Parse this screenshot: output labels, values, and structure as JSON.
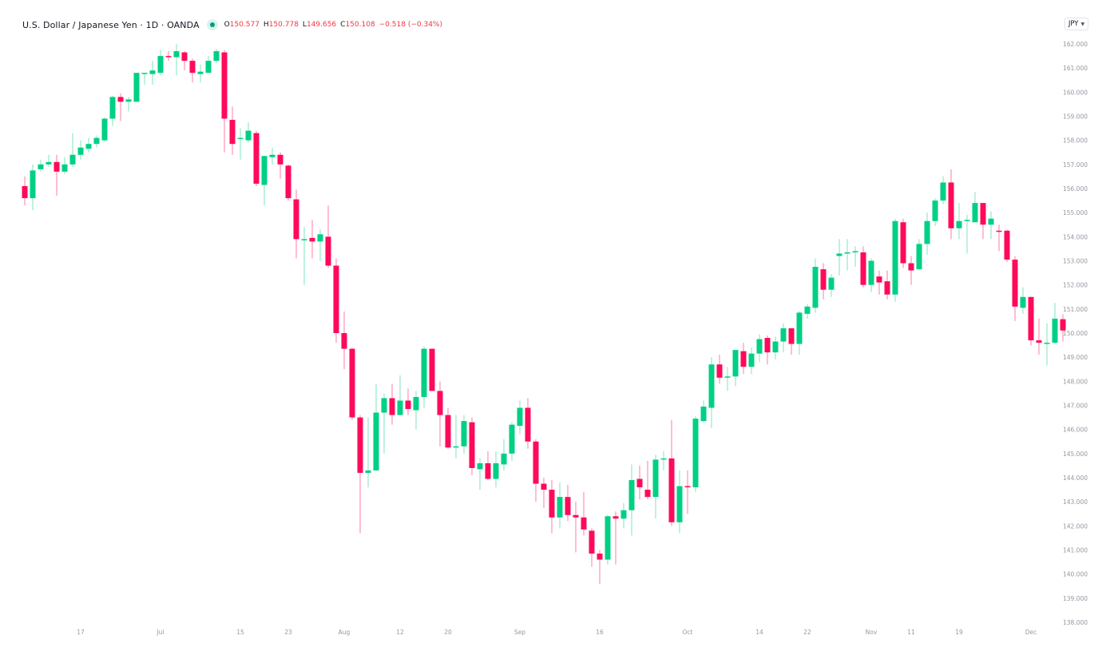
{
  "header": {
    "title": "U.S. Dollar / Japanese Yen · 1D · OANDA",
    "status_color": "#089981",
    "ohlc": {
      "open_label": "O",
      "open": "150.577",
      "high_label": "H",
      "high": "150.778",
      "low_label": "L",
      "low": "149.656",
      "close_label": "C",
      "close": "150.108",
      "change": "−0.518 (−0.34%)"
    }
  },
  "currency_selector": {
    "value": "JPY",
    "icon": "chevron-down-icon"
  },
  "colors": {
    "up": "#00d084",
    "down": "#ff0a5a",
    "up_wick": "#7fe4be",
    "down_wick": "#ff7ea6",
    "axis_text": "#9598a1"
  },
  "chart_data": {
    "type": "candlestick",
    "title": "U.S. Dollar / Japanese Yen · 1D · OANDA",
    "xlabel": "",
    "ylabel": "",
    "ylim": [
      138,
      162
    ],
    "grid": false,
    "y_ticks": [
      "162.000",
      "161.000",
      "160.000",
      "159.000",
      "158.000",
      "157.000",
      "156.000",
      "155.000",
      "154.000",
      "153.000",
      "152.000",
      "151.000",
      "150.000",
      "149.000",
      "148.000",
      "147.000",
      "146.000",
      "145.000",
      "144.000",
      "143.000",
      "142.000",
      "141.000",
      "140.000",
      "139.000",
      "138.000"
    ],
    "x_ticks": [
      {
        "label": "17",
        "index": 7
      },
      {
        "label": "Jul",
        "index": 17
      },
      {
        "label": "15",
        "index": 27
      },
      {
        "label": "23",
        "index": 33
      },
      {
        "label": "Aug",
        "index": 40
      },
      {
        "label": "12",
        "index": 47
      },
      {
        "label": "20",
        "index": 53
      },
      {
        "label": "Sep",
        "index": 62
      },
      {
        "label": "16",
        "index": 72
      },
      {
        "label": "Oct",
        "index": 83
      },
      {
        "label": "14",
        "index": 92
      },
      {
        "label": "22",
        "index": 98
      },
      {
        "label": "Nov",
        "index": 106
      },
      {
        "label": "11",
        "index": 111
      },
      {
        "label": "19",
        "index": 117
      },
      {
        "label": "Dec",
        "index": 126
      }
    ],
    "series": [
      {
        "name": "USDJPY",
        "fields": [
          "open",
          "high",
          "low",
          "close"
        ],
        "values": [
          [
            156.1,
            156.5,
            155.3,
            155.6
          ],
          [
            155.6,
            157.0,
            155.1,
            156.75
          ],
          [
            156.8,
            157.2,
            156.7,
            157.0
          ],
          [
            157.0,
            157.4,
            156.9,
            157.1
          ],
          [
            157.1,
            157.4,
            155.7,
            156.7
          ],
          [
            156.7,
            157.3,
            156.6,
            157.0
          ],
          [
            157.0,
            158.3,
            156.9,
            157.4
          ],
          [
            157.4,
            158.0,
            157.2,
            157.7
          ],
          [
            157.65,
            158.1,
            157.5,
            157.85
          ],
          [
            157.85,
            158.2,
            157.7,
            158.1
          ],
          [
            158.0,
            158.95,
            157.95,
            158.9
          ],
          [
            158.9,
            159.85,
            158.6,
            159.8
          ],
          [
            159.8,
            159.95,
            158.8,
            159.6
          ],
          [
            159.6,
            159.8,
            159.2,
            159.7
          ],
          [
            159.6,
            160.8,
            159.6,
            160.8
          ],
          [
            160.75,
            160.8,
            160.3,
            160.8
          ],
          [
            160.75,
            161.3,
            160.3,
            160.9
          ],
          [
            160.8,
            161.75,
            160.7,
            161.5
          ],
          [
            161.5,
            161.7,
            161.3,
            161.45
          ],
          [
            161.45,
            162.0,
            160.7,
            161.7
          ],
          [
            161.65,
            161.7,
            160.9,
            161.3
          ],
          [
            161.3,
            161.4,
            160.4,
            160.8
          ],
          [
            160.75,
            161.15,
            160.4,
            160.85
          ],
          [
            160.8,
            161.5,
            160.8,
            161.3
          ],
          [
            161.3,
            161.8,
            161.2,
            161.7
          ],
          [
            161.65,
            161.75,
            157.5,
            158.9
          ],
          [
            158.85,
            159.4,
            157.4,
            157.85
          ],
          [
            158.1,
            158.5,
            157.2,
            158.1
          ],
          [
            158.0,
            158.75,
            157.9,
            158.4
          ],
          [
            158.3,
            158.4,
            156.1,
            156.2
          ],
          [
            156.15,
            157.35,
            155.3,
            157.35
          ],
          [
            157.3,
            157.7,
            157.0,
            157.4
          ],
          [
            157.4,
            157.5,
            156.4,
            157.0
          ],
          [
            156.95,
            157.0,
            155.5,
            155.6
          ],
          [
            155.55,
            155.95,
            153.1,
            153.9
          ],
          [
            153.9,
            154.4,
            152.0,
            153.9
          ],
          [
            153.95,
            154.7,
            153.1,
            153.8
          ],
          [
            153.8,
            154.3,
            153.0,
            154.1
          ],
          [
            154.0,
            155.3,
            152.7,
            152.8
          ],
          [
            152.8,
            153.1,
            149.6,
            150.0
          ],
          [
            150.0,
            150.9,
            148.5,
            149.35
          ],
          [
            149.35,
            149.4,
            146.4,
            146.5
          ],
          [
            146.5,
            146.6,
            141.7,
            144.2
          ],
          [
            144.2,
            146.5,
            143.6,
            144.3
          ],
          [
            144.3,
            147.9,
            144.3,
            146.7
          ],
          [
            146.7,
            147.5,
            145.0,
            147.3
          ],
          [
            147.3,
            147.9,
            146.2,
            146.6
          ],
          [
            146.6,
            148.25,
            146.6,
            147.2
          ],
          [
            147.2,
            147.7,
            146.6,
            146.85
          ],
          [
            146.8,
            147.6,
            146.0,
            147.35
          ],
          [
            147.35,
            149.45,
            146.9,
            149.35
          ],
          [
            149.35,
            149.35,
            147.6,
            147.6
          ],
          [
            147.6,
            148.0,
            145.3,
            146.6
          ],
          [
            146.6,
            146.9,
            145.2,
            145.25
          ],
          [
            145.25,
            146.6,
            144.8,
            145.3
          ],
          [
            145.3,
            146.6,
            145.0,
            146.35
          ],
          [
            146.3,
            146.5,
            144.1,
            144.4
          ],
          [
            144.35,
            144.8,
            143.5,
            144.6
          ],
          [
            144.6,
            145.1,
            143.9,
            143.95
          ],
          [
            143.95,
            145.1,
            143.6,
            144.6
          ],
          [
            144.55,
            145.6,
            144.3,
            145.0
          ],
          [
            145.0,
            146.3,
            144.7,
            146.2
          ],
          [
            146.15,
            147.2,
            145.8,
            146.9
          ],
          [
            146.9,
            147.3,
            145.2,
            145.5
          ],
          [
            145.5,
            145.6,
            143.0,
            143.75
          ],
          [
            143.75,
            144.0,
            142.75,
            143.5
          ],
          [
            143.5,
            143.9,
            141.7,
            142.35
          ],
          [
            142.35,
            143.8,
            141.9,
            143.2
          ],
          [
            143.2,
            143.7,
            142.2,
            142.45
          ],
          [
            142.45,
            143.0,
            140.9,
            142.35
          ],
          [
            142.35,
            143.4,
            141.6,
            141.85
          ],
          [
            141.8,
            141.9,
            140.3,
            140.85
          ],
          [
            140.85,
            141.0,
            139.6,
            140.6
          ],
          [
            140.6,
            142.45,
            140.4,
            142.4
          ],
          [
            142.4,
            142.6,
            140.4,
            142.3
          ],
          [
            142.3,
            142.95,
            141.9,
            142.65
          ],
          [
            142.65,
            144.55,
            141.6,
            143.9
          ],
          [
            143.95,
            144.5,
            143.1,
            143.6
          ],
          [
            143.5,
            144.7,
            143.1,
            143.2
          ],
          [
            143.2,
            144.95,
            142.3,
            144.75
          ],
          [
            144.75,
            145.1,
            144.3,
            144.8
          ],
          [
            144.8,
            146.4,
            142.0,
            142.15
          ],
          [
            142.15,
            144.3,
            141.7,
            143.65
          ],
          [
            143.65,
            144.3,
            142.5,
            143.6
          ],
          [
            143.6,
            146.55,
            143.4,
            146.45
          ],
          [
            146.35,
            147.2,
            146.3,
            146.95
          ],
          [
            146.9,
            149.0,
            146.05,
            148.7
          ],
          [
            148.7,
            149.1,
            147.9,
            148.15
          ],
          [
            148.2,
            148.6,
            147.6,
            148.2
          ],
          [
            148.2,
            149.3,
            147.8,
            149.3
          ],
          [
            149.25,
            149.6,
            148.3,
            148.6
          ],
          [
            148.6,
            149.4,
            148.3,
            149.15
          ],
          [
            149.15,
            149.95,
            148.8,
            149.75
          ],
          [
            149.8,
            149.9,
            148.7,
            149.2
          ],
          [
            149.2,
            149.85,
            148.9,
            149.65
          ],
          [
            149.65,
            150.4,
            149.2,
            150.2
          ],
          [
            150.2,
            150.2,
            149.1,
            149.55
          ],
          [
            149.55,
            150.9,
            149.1,
            150.85
          ],
          [
            150.8,
            151.2,
            150.6,
            151.1
          ],
          [
            151.05,
            153.1,
            150.85,
            152.75
          ],
          [
            152.65,
            152.9,
            151.4,
            151.8
          ],
          [
            151.8,
            152.45,
            151.5,
            152.3
          ],
          [
            153.2,
            153.9,
            152.4,
            153.3
          ],
          [
            153.3,
            153.9,
            152.6,
            153.35
          ],
          [
            153.35,
            153.6,
            152.75,
            153.4
          ],
          [
            153.35,
            153.6,
            151.9,
            152.0
          ],
          [
            152.0,
            153.1,
            151.7,
            153.0
          ],
          [
            152.35,
            152.6,
            151.6,
            152.1
          ],
          [
            152.15,
            152.6,
            151.4,
            151.6
          ],
          [
            151.6,
            154.75,
            151.3,
            154.65
          ],
          [
            154.6,
            154.75,
            152.7,
            152.9
          ],
          [
            152.9,
            153.2,
            152.0,
            152.6
          ],
          [
            152.65,
            153.9,
            152.6,
            153.7
          ],
          [
            153.7,
            155.0,
            153.25,
            154.65
          ],
          [
            154.65,
            155.6,
            154.45,
            155.5
          ],
          [
            155.5,
            156.5,
            155.35,
            156.25
          ],
          [
            156.25,
            156.8,
            153.9,
            154.35
          ],
          [
            154.35,
            155.4,
            153.9,
            154.65
          ],
          [
            154.65,
            154.9,
            153.3,
            154.7
          ],
          [
            154.6,
            155.85,
            154.6,
            155.4
          ],
          [
            155.4,
            155.4,
            153.9,
            154.5
          ],
          [
            154.5,
            155.05,
            153.9,
            154.75
          ],
          [
            154.25,
            154.5,
            153.4,
            154.2
          ],
          [
            154.25,
            154.3,
            152.95,
            153.05
          ],
          [
            153.05,
            153.2,
            150.5,
            151.1
          ],
          [
            151.05,
            151.9,
            150.8,
            151.5
          ],
          [
            151.5,
            151.5,
            149.5,
            149.7
          ],
          [
            149.7,
            150.6,
            149.1,
            149.6
          ],
          [
            149.6,
            150.4,
            148.65,
            149.6
          ],
          [
            149.6,
            151.25,
            149.55,
            150.6
          ],
          [
            150.577,
            150.778,
            149.656,
            150.108
          ]
        ]
      }
    ],
    "last": {
      "open": 150.577,
      "high": 150.778,
      "low": 149.656,
      "close": 150.108,
      "change": -0.518,
      "change_pct": -0.34
    }
  }
}
